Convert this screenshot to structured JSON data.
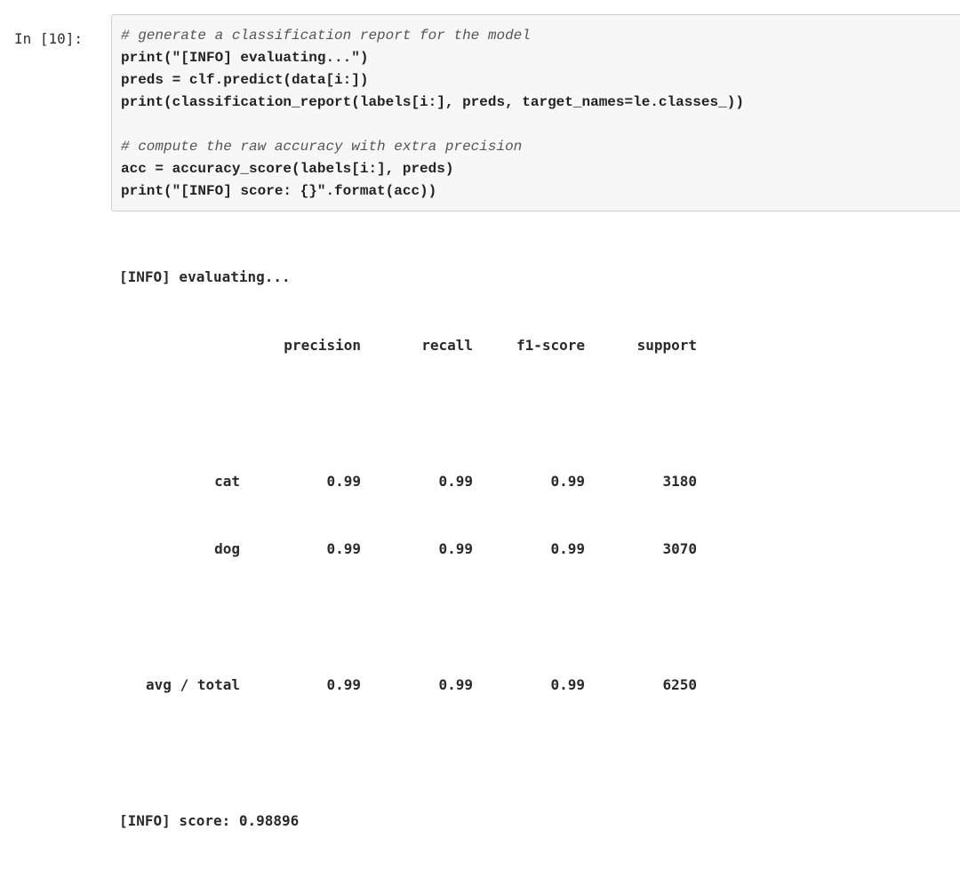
{
  "cell": {
    "prompt": "In [10]:",
    "code_lines": [
      {
        "kind": "comment",
        "text": "# generate a classification report for the model"
      },
      {
        "kind": "code",
        "text": "print(\"[INFO] evaluating...\")"
      },
      {
        "kind": "code",
        "text": "preds = clf.predict(data[i:])"
      },
      {
        "kind": "code",
        "text": "print(classification_report(labels[i:], preds, target_names=le.classes_))"
      },
      {
        "kind": "blank",
        "text": ""
      },
      {
        "kind": "comment",
        "text": "# compute the raw accuracy with extra precision"
      },
      {
        "kind": "code",
        "text": "acc = accuracy_score(labels[i:], preds)"
      },
      {
        "kind": "code",
        "text": "print(\"[INFO] score: {}\".format(acc))"
      }
    ]
  },
  "output": {
    "evaluating_line": "[INFO] evaluating...",
    "report": {
      "headers": [
        "precision",
        "recall",
        "f1-score",
        "support"
      ],
      "rows": [
        {
          "label": "cat",
          "precision": "0.99",
          "recall": "0.99",
          "f1": "0.99",
          "support": "3180"
        },
        {
          "label": "dog",
          "precision": "0.99",
          "recall": "0.99",
          "f1": "0.99",
          "support": "3070"
        }
      ],
      "total": {
        "label": "avg / total",
        "precision": "0.99",
        "recall": "0.99",
        "f1": "0.99",
        "support": "6250"
      }
    },
    "score_line": "[INFO] score: 0.98896"
  }
}
